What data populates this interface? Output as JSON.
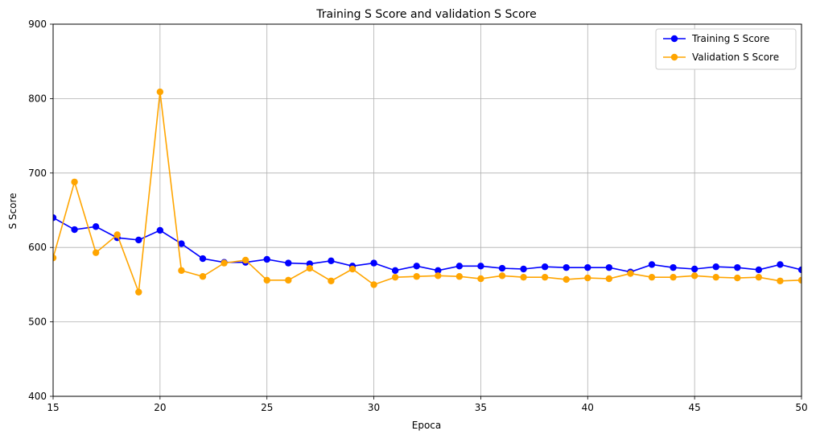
{
  "chart_data": {
    "type": "line",
    "title": "Training S Score and validation S Score",
    "xlabel": "Epoca",
    "ylabel": "S Score",
    "xlim": [
      15,
      50
    ],
    "ylim": [
      400,
      900
    ],
    "xticks": [
      "15",
      "20",
      "25",
      "30",
      "35",
      "40",
      "45",
      "50"
    ],
    "yticks": [
      "400",
      "500",
      "600",
      "700",
      "800",
      "900"
    ],
    "grid": true,
    "legend_position": "top-right",
    "x": [
      15,
      16,
      17,
      18,
      19,
      20,
      21,
      22,
      23,
      24,
      25,
      26,
      27,
      28,
      29,
      30,
      31,
      32,
      33,
      34,
      35,
      36,
      37,
      38,
      39,
      40,
      41,
      42,
      43,
      44,
      45,
      46,
      47,
      48,
      49,
      50
    ],
    "series": [
      {
        "name": "Training S Score",
        "color": "#0000ff",
        "values": [
          640,
          624,
          628,
          613,
          610,
          623,
          605,
          585,
          580,
          580,
          584,
          579,
          578,
          582,
          575,
          579,
          569,
          575,
          569,
          575,
          575,
          572,
          571,
          574,
          573,
          573,
          573,
          567,
          577,
          573,
          571,
          574,
          573,
          570,
          577,
          570
        ]
      },
      {
        "name": "Validation S Score",
        "color": "#ffa500",
        "values": [
          586,
          688,
          593,
          617,
          540,
          809,
          569,
          561,
          579,
          583,
          556,
          556,
          572,
          555,
          571,
          550,
          560,
          561,
          562,
          561,
          558,
          562,
          560,
          560,
          557,
          559,
          558,
          565,
          560,
          560,
          562,
          560,
          559,
          560,
          555,
          556
        ]
      }
    ]
  }
}
